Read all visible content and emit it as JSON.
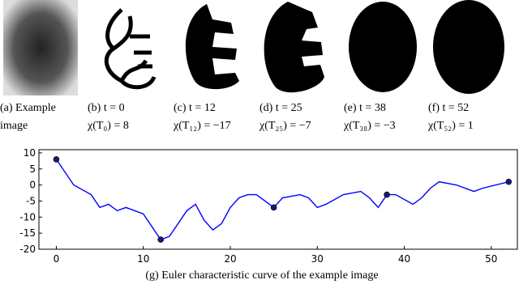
{
  "panels": [
    {
      "lines": [
        "(a)  Example",
        "image"
      ]
    },
    {
      "lines": [
        "(b) t = 0",
        "χ(T₀) = 8"
      ]
    },
    {
      "lines": [
        "(c) t = 12",
        "χ(T₁₂) = −17"
      ]
    },
    {
      "lines": [
        "(d) t = 25",
        "χ(T₂₅) = −7"
      ]
    },
    {
      "lines": [
        "(e) t = 38",
        "χ(T₃₈) = −3"
      ]
    },
    {
      "lines": [
        "(f) t = 52",
        "χ(T₅₂) = 1"
      ]
    }
  ],
  "chart_data": {
    "type": "line",
    "caption": "(g) Euler characteristic curve of the example image",
    "series": [
      {
        "color": "#0000ff",
        "x": [
          0,
          2,
          4,
          5,
          6,
          7,
          8,
          10,
          12,
          13,
          15,
          16,
          17,
          18,
          19,
          20,
          21,
          22,
          23,
          25,
          26,
          28,
          29,
          30,
          31,
          33,
          35,
          36,
          37,
          38,
          39,
          41,
          42,
          43,
          44,
          46,
          48,
          49,
          52
        ],
        "values": [
          8,
          0,
          -3,
          -7,
          -6,
          -8,
          -7,
          -9,
          -17,
          -16,
          -8,
          -6,
          -11,
          -14,
          -12,
          -7,
          -4,
          -3,
          -3,
          -7,
          -4,
          -3,
          -4,
          -7,
          -6,
          -3,
          -2,
          -4,
          -7,
          -3,
          -3,
          -6,
          -4,
          -1,
          1,
          0,
          -2,
          -1,
          1
        ]
      },
      {
        "color": "#1a1a6e",
        "marker": "circle",
        "x": [
          0,
          12,
          25,
          38,
          52
        ],
        "values": [
          8,
          -17,
          -7,
          -3,
          1
        ]
      }
    ],
    "xlim": [
      -2,
      53
    ],
    "ylim": [
      -20,
      11
    ],
    "xticks": [
      0,
      10,
      20,
      30,
      40,
      50
    ],
    "yticks": [
      -20,
      -15,
      -10,
      -5,
      0,
      5,
      10
    ]
  }
}
